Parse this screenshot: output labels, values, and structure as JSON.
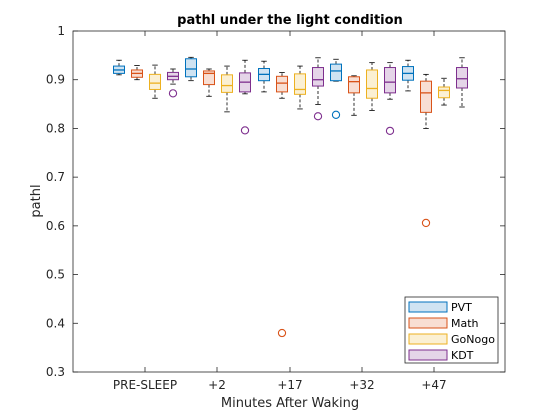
{
  "chart_data": {
    "type": "box",
    "title": "pathl under the light condition",
    "xlabel": "Minutes After Waking",
    "ylabel": "pathl",
    "ylim": [
      0.3,
      1.0
    ],
    "yticks": [
      "0.3",
      "0.4",
      "0.5",
      "0.6",
      "0.7",
      "0.8",
      "0.9",
      "1"
    ],
    "categories": [
      "PRE-SLEEP",
      "+2",
      "+17",
      "+32",
      "+47"
    ],
    "legend_position": "bottom-right",
    "series": [
      {
        "name": "PVT",
        "color": "#0072BD",
        "fill": "#CFE3F2",
        "boxes": [
          {
            "whisker_low": 0.91,
            "q1": 0.913,
            "median": 0.92,
            "q3": 0.928,
            "whisker_high": 0.94,
            "outliers": []
          },
          {
            "whisker_low": 0.898,
            "q1": 0.906,
            "median": 0.922,
            "q3": 0.943,
            "whisker_high": 0.946,
            "outliers": []
          },
          {
            "whisker_low": 0.875,
            "q1": 0.898,
            "median": 0.911,
            "q3": 0.923,
            "whisker_high": 0.938,
            "outliers": []
          },
          {
            "whisker_low": 0.897,
            "q1": 0.898,
            "median": 0.918,
            "q3": 0.932,
            "whisker_high": 0.942,
            "outliers": [
              0.828
            ]
          },
          {
            "whisker_low": 0.877,
            "q1": 0.899,
            "median": 0.913,
            "q3": 0.927,
            "whisker_high": 0.94,
            "outliers": []
          }
        ]
      },
      {
        "name": "Math",
        "color": "#D95319",
        "fill": "#F8DED3",
        "boxes": [
          {
            "whisker_low": 0.9,
            "q1": 0.905,
            "median": 0.913,
            "q3": 0.92,
            "whisker_high": 0.929,
            "outliers": []
          },
          {
            "whisker_low": 0.866,
            "q1": 0.89,
            "median": 0.913,
            "q3": 0.918,
            "whisker_high": 0.922,
            "outliers": []
          },
          {
            "whisker_low": 0.862,
            "q1": 0.875,
            "median": 0.893,
            "q3": 0.907,
            "whisker_high": 0.915,
            "outliers": [
              0.38
            ]
          },
          {
            "whisker_low": 0.827,
            "q1": 0.873,
            "median": 0.896,
            "q3": 0.906,
            "whisker_high": 0.908,
            "outliers": []
          },
          {
            "whisker_low": 0.8,
            "q1": 0.833,
            "median": 0.873,
            "q3": 0.897,
            "whisker_high": 0.911,
            "outliers": [
              0.606
            ]
          }
        ]
      },
      {
        "name": "GoNogo",
        "color": "#EDB120",
        "fill": "#FBF0D3",
        "boxes": [
          {
            "whisker_low": 0.862,
            "q1": 0.88,
            "median": 0.893,
            "q3": 0.911,
            "whisker_high": 0.93,
            "outliers": []
          },
          {
            "whisker_low": 0.834,
            "q1": 0.874,
            "median": 0.888,
            "q3": 0.91,
            "whisker_high": 0.928,
            "outliers": []
          },
          {
            "whisker_low": 0.84,
            "q1": 0.87,
            "median": 0.88,
            "q3": 0.912,
            "whisker_high": 0.928,
            "outliers": []
          },
          {
            "whisker_low": 0.837,
            "q1": 0.862,
            "median": 0.882,
            "q3": 0.92,
            "whisker_high": 0.935,
            "outliers": []
          },
          {
            "whisker_low": 0.848,
            "q1": 0.863,
            "median": 0.878,
            "q3": 0.885,
            "whisker_high": 0.903,
            "outliers": []
          }
        ]
      },
      {
        "name": "KDT",
        "color": "#7E2F8E",
        "fill": "#E5D5E8",
        "boxes": [
          {
            "whisker_low": 0.891,
            "q1": 0.9,
            "median": 0.907,
            "q3": 0.915,
            "whisker_high": 0.922,
            "outliers": [
              0.872
            ]
          },
          {
            "whisker_low": 0.871,
            "q1": 0.875,
            "median": 0.895,
            "q3": 0.914,
            "whisker_high": 0.94,
            "outliers": [
              0.796
            ]
          },
          {
            "whisker_low": 0.849,
            "q1": 0.887,
            "median": 0.9,
            "q3": 0.925,
            "whisker_high": 0.945,
            "outliers": [
              0.825
            ]
          },
          {
            "whisker_low": 0.86,
            "q1": 0.873,
            "median": 0.895,
            "q3": 0.925,
            "whisker_high": 0.935,
            "outliers": [
              0.795
            ]
          },
          {
            "whisker_low": 0.844,
            "q1": 0.883,
            "median": 0.902,
            "q3": 0.925,
            "whisker_high": 0.945,
            "outliers": []
          }
        ]
      }
    ]
  }
}
